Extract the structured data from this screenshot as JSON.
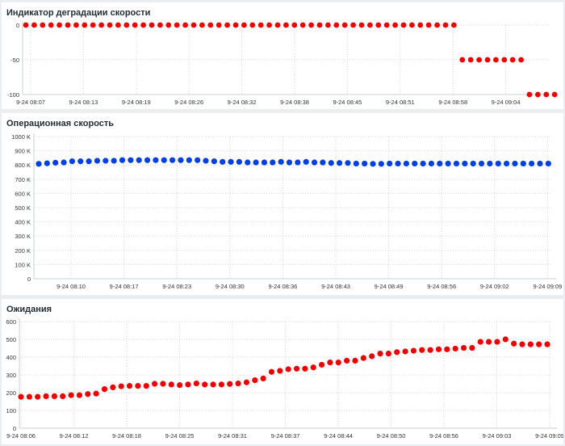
{
  "panels": [
    {
      "title": "Индикатор деградации скорости",
      "color": "#ee0000"
    },
    {
      "title": "Операционная скорость",
      "color": "#0040e0"
    },
    {
      "title": "Ожидания",
      "color": "#ee0000"
    }
  ],
  "chart_data": [
    {
      "type": "scatter",
      "title": "Индикатор деградации скорости",
      "xlabel": "",
      "ylabel": "",
      "ylim": [
        -100,
        0
      ],
      "yticks": [
        "0",
        "-50",
        "-100"
      ],
      "xticks": [
        "9-24 08:07",
        "9-24 08:13",
        "9-24 08:19",
        "9-24 08:26",
        "9-24 08:32",
        "9-24 08:38",
        "9-24 08:45",
        "9-24 08:51",
        "9-24 08:58",
        "9-24 09:04"
      ],
      "grid": true,
      "color": "#ee0000",
      "values": [
        0,
        0,
        0,
        0,
        0,
        0,
        0,
        0,
        0,
        0,
        0,
        0,
        0,
        0,
        0,
        0,
        0,
        0,
        0,
        0,
        0,
        0,
        0,
        0,
        0,
        0,
        0,
        0,
        0,
        0,
        0,
        0,
        0,
        0,
        0,
        0,
        0,
        0,
        0,
        0,
        0,
        0,
        0,
        0,
        0,
        0,
        0,
        0,
        0,
        0,
        0,
        0,
        -50,
        -50,
        -50,
        -50,
        -50,
        -50,
        -50,
        -50,
        -100,
        -100,
        -100,
        -100
      ]
    },
    {
      "type": "scatter",
      "title": "Операционная скорость",
      "xlabel": "",
      "ylabel": "",
      "ylim": [
        0,
        1000000
      ],
      "yticks": [
        "1000 K",
        "900 K",
        "800 K",
        "700 K",
        "600 K",
        "500 K",
        "400 K",
        "300 K",
        "200 K",
        "100 K",
        "0"
      ],
      "xticks": [
        "9-24 08:10",
        "9-24 08:17",
        "9-24 08:23",
        "9-24 08:30",
        "9-24 08:36",
        "9-24 08:43",
        "9-24 08:49",
        "9-24 08:56",
        "9-24 09:02",
        "9-24 09:09"
      ],
      "grid": true,
      "color": "#0040e0",
      "values": [
        808000,
        812000,
        816000,
        818000,
        826000,
        826000,
        826000,
        830000,
        830000,
        830000,
        834000,
        834000,
        834000,
        834000,
        834000,
        834000,
        834000,
        834000,
        834000,
        834000,
        830000,
        826000,
        822000,
        822000,
        822000,
        818000,
        818000,
        818000,
        818000,
        822000,
        818000,
        818000,
        822000,
        818000,
        818000,
        814000,
        814000,
        814000,
        810000,
        810000,
        808000,
        808000,
        810000,
        810000,
        810000,
        810000,
        810000,
        810000,
        810000,
        810000,
        810000,
        810000,
        810000,
        810000,
        810000,
        810000,
        810000,
        810000,
        810000,
        810000,
        810000,
        810000
      ]
    },
    {
      "type": "scatter",
      "title": "Ожидания",
      "xlabel": "",
      "ylabel": "",
      "ylim": [
        0,
        600
      ],
      "yticks": [
        "600",
        "500",
        "400",
        "300",
        "200",
        "100",
        "0"
      ],
      "xticks": [
        "9-24 08:06",
        "9-24 08:12",
        "9-24 08:18",
        "9-24 08:25",
        "9-24 08:31",
        "9-24 08:37",
        "9-24 08:44",
        "9-24 08:50",
        "9-24 08:56",
        "9-24 09:03",
        "9-24 09:09"
      ],
      "grid": true,
      "color": "#ee0000",
      "values": [
        177,
        177,
        177,
        180,
        180,
        180,
        186,
        186,
        192,
        195,
        220,
        230,
        236,
        238,
        238,
        238,
        250,
        250,
        246,
        243,
        246,
        252,
        246,
        246,
        246,
        249,
        252,
        258,
        270,
        280,
        317,
        323,
        332,
        335,
        335,
        342,
        357,
        370,
        370,
        380,
        380,
        395,
        405,
        420,
        420,
        428,
        432,
        436,
        440,
        440,
        444,
        444,
        448,
        452,
        452,
        486,
        486,
        486,
        500,
        476,
        472,
        472,
        472,
        472
      ]
    }
  ]
}
